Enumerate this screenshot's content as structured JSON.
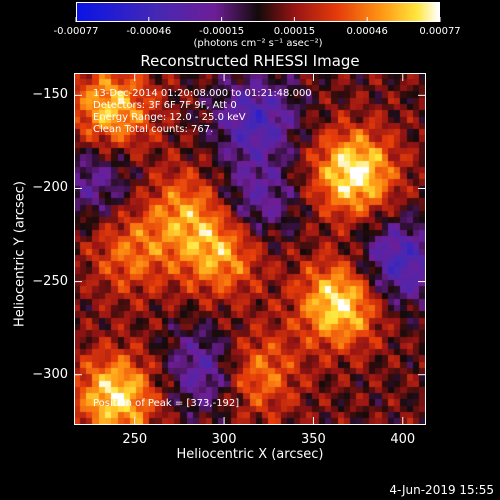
{
  "colorbar": {
    "ticks": [
      "-0.00077",
      "-0.00046",
      "-0.00015",
      "0.00015",
      "0.00046",
      "0.00077"
    ],
    "label": "(photons cm⁻² s⁻¹ asec⁻²)"
  },
  "info": {
    "line1": "13-Dec-2014 01:20:08.000 to 01:21:48.000",
    "line2": "Detectors: 3F 6F 7F 9F, Att 0",
    "line3": "Energy Range: 12.0 - 25.0 keV",
    "line4": "Clean     Total counts: 767.",
    "peak": "Position of Peak = [373,-192]"
  },
  "footer": {
    "date": "4-Jun-2019 15:55"
  },
  "chart_data": {
    "type": "heatmap",
    "title": "Reconstructed RHESSI Image",
    "xlabel": "Heliocentric X (arcsec)",
    "ylabel": "Heliocentric Y (arcsec)",
    "xlim": [
      216,
      413
    ],
    "ylim": [
      -327,
      -138
    ],
    "xticks": [
      250,
      300,
      350,
      400
    ],
    "yticks": [
      -150,
      -200,
      -250,
      -300
    ],
    "colorbar_range": [
      -0.00077,
      0.00077
    ],
    "colormap": "blue-purple-red-yellow-white",
    "peak": [
      373,
      -192
    ],
    "sources": [
      {
        "x": 373,
        "y": -192,
        "intensity": 1.0
      },
      {
        "x": 365,
        "y": -262,
        "intensity": 0.95
      },
      {
        "x": 240,
        "y": -312,
        "intensity": 0.9
      },
      {
        "x": 237,
        "y": -158,
        "intensity": 0.8
      },
      {
        "x": 298,
        "y": -235,
        "intensity": 0.7
      },
      {
        "x": 278,
        "y": -212,
        "intensity": 0.55
      },
      {
        "x": 318,
        "y": -300,
        "intensity": 0.6
      },
      {
        "x": 248,
        "y": -235,
        "intensity": 0.5
      }
    ],
    "negative_regions": [
      {
        "x": 318,
        "y": -163,
        "intensity": -0.7
      },
      {
        "x": 290,
        "y": -298,
        "intensity": -0.6
      },
      {
        "x": 398,
        "y": -240,
        "intensity": -0.75
      },
      {
        "x": 318,
        "y": -207,
        "intensity": -0.5
      },
      {
        "x": 228,
        "y": -195,
        "intensity": -0.45
      }
    ]
  }
}
